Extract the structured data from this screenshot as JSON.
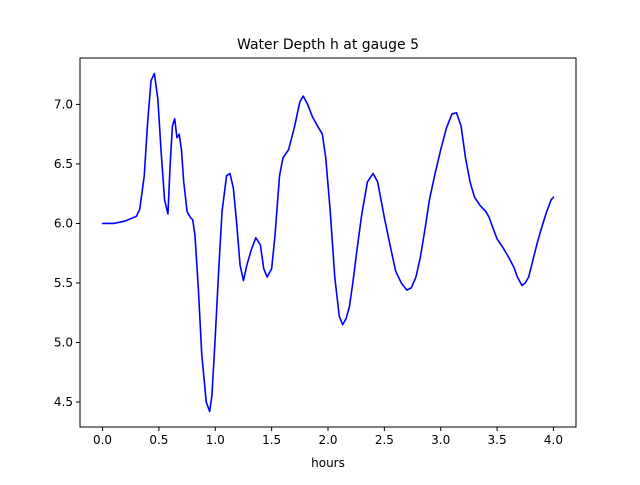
{
  "chart_data": {
    "type": "line",
    "title": "Water Depth h at gauge 5",
    "xlabel": "hours",
    "ylabel": "",
    "xlim": [
      -0.2,
      4.2
    ],
    "ylim": [
      4.29,
      7.39
    ],
    "xticks": [
      0.0,
      0.5,
      1.0,
      1.5,
      2.0,
      2.5,
      3.0,
      3.5,
      4.0
    ],
    "xtick_labels": [
      "0.0",
      "0.5",
      "1.0",
      "1.5",
      "2.0",
      "2.5",
      "3.0",
      "3.5",
      "4.0"
    ],
    "yticks": [
      4.5,
      5.0,
      5.5,
      6.0,
      6.5,
      7.0
    ],
    "ytick_labels": [
      "4.5",
      "5.0",
      "5.5",
      "6.0",
      "6.5",
      "7.0"
    ],
    "grid": false,
    "series": [
      {
        "name": "",
        "color": "#0000ff",
        "x": [
          0.0,
          0.1,
          0.2,
          0.3,
          0.33,
          0.37,
          0.4,
          0.43,
          0.46,
          0.49,
          0.52,
          0.55,
          0.58,
          0.6,
          0.62,
          0.64,
          0.66,
          0.68,
          0.7,
          0.72,
          0.75,
          0.78,
          0.8,
          0.82,
          0.85,
          0.88,
          0.92,
          0.95,
          0.97,
          1.0,
          1.03,
          1.06,
          1.1,
          1.13,
          1.16,
          1.19,
          1.22,
          1.25,
          1.28,
          1.32,
          1.36,
          1.4,
          1.43,
          1.46,
          1.5,
          1.53,
          1.57,
          1.6,
          1.65,
          1.7,
          1.75,
          1.78,
          1.82,
          1.86,
          1.9,
          1.95,
          1.98,
          2.02,
          2.06,
          2.1,
          2.13,
          2.16,
          2.19,
          2.22,
          2.26,
          2.3,
          2.35,
          2.4,
          2.44,
          2.47,
          2.5,
          2.55,
          2.6,
          2.65,
          2.7,
          2.74,
          2.78,
          2.82,
          2.86,
          2.9,
          2.95,
          3.0,
          3.05,
          3.1,
          3.14,
          3.18,
          3.22,
          3.26,
          3.3,
          3.35,
          3.4,
          3.43,
          3.46,
          3.5,
          3.55,
          3.6,
          3.65,
          3.68,
          3.72,
          3.75,
          3.78,
          3.82,
          3.86,
          3.9,
          3.94,
          3.98,
          4.0
        ],
        "y": [
          6.0,
          6.0,
          6.02,
          6.06,
          6.12,
          6.4,
          6.85,
          7.2,
          7.26,
          7.05,
          6.6,
          6.2,
          6.08,
          6.5,
          6.82,
          6.88,
          6.72,
          6.75,
          6.62,
          6.35,
          6.1,
          6.05,
          6.03,
          5.9,
          5.45,
          4.9,
          4.5,
          4.42,
          4.55,
          5.05,
          5.6,
          6.1,
          6.4,
          6.42,
          6.3,
          6.0,
          5.65,
          5.52,
          5.65,
          5.78,
          5.88,
          5.82,
          5.62,
          5.55,
          5.62,
          5.9,
          6.4,
          6.55,
          6.62,
          6.8,
          7.02,
          7.07,
          7.0,
          6.9,
          6.83,
          6.75,
          6.55,
          6.1,
          5.55,
          5.22,
          5.15,
          5.2,
          5.3,
          5.5,
          5.8,
          6.08,
          6.35,
          6.42,
          6.35,
          6.2,
          6.05,
          5.82,
          5.6,
          5.5,
          5.44,
          5.46,
          5.55,
          5.72,
          5.95,
          6.2,
          6.42,
          6.62,
          6.8,
          6.92,
          6.93,
          6.82,
          6.55,
          6.35,
          6.22,
          6.15,
          6.1,
          6.05,
          5.97,
          5.87,
          5.8,
          5.72,
          5.63,
          5.55,
          5.48,
          5.5,
          5.55,
          5.7,
          5.85,
          5.98,
          6.1,
          6.2,
          6.22
        ]
      }
    ]
  }
}
